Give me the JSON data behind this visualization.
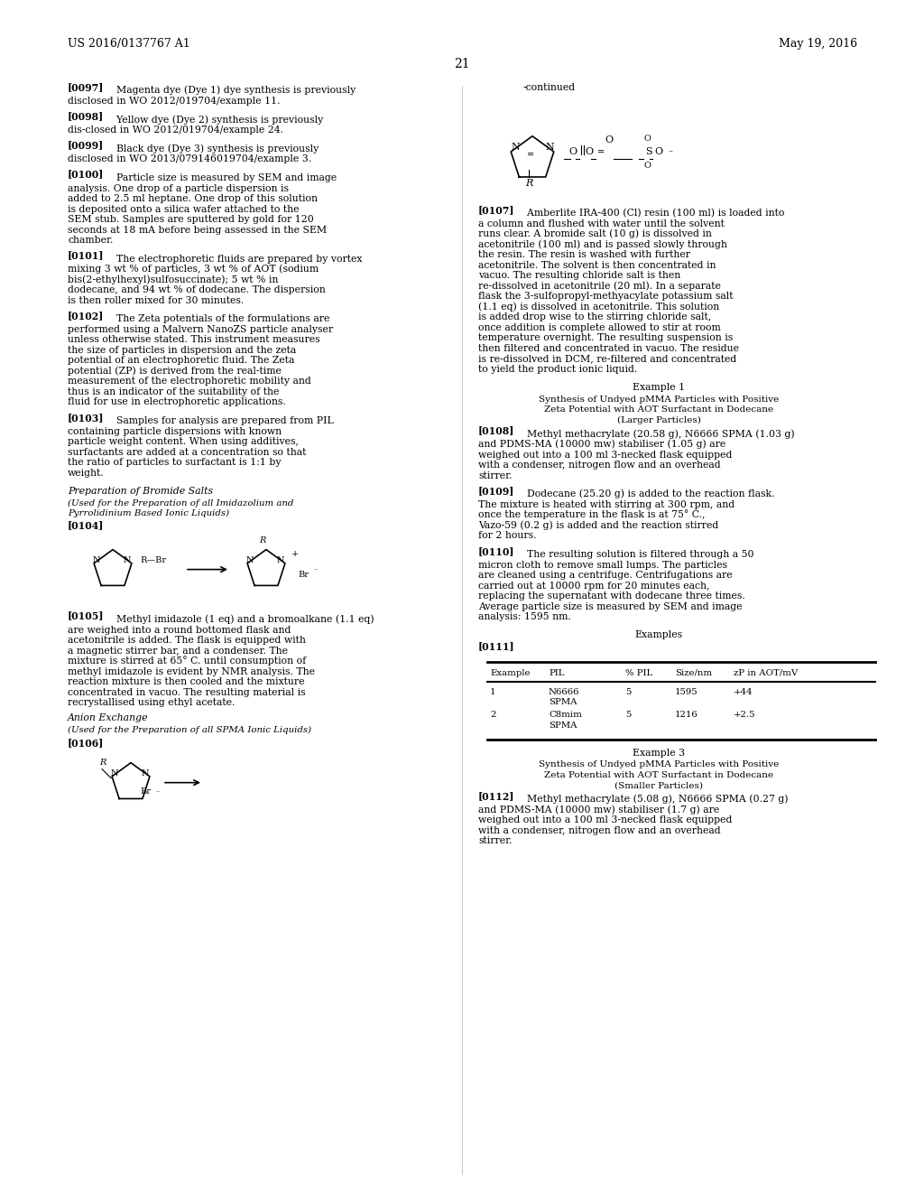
{
  "bg_color": "#ffffff",
  "header_left": "US 2016/0137767 A1",
  "header_right": "May 19, 2016",
  "page_number": "21",
  "left_column": {
    "paragraphs": [
      {
        "tag": "[0097]",
        "text": "Magenta dye (Dye 1) dye synthesis is previously disclosed in WO 2012/019704/example 11."
      },
      {
        "tag": "[0098]",
        "text": "Yellow dye (Dye 2) synthesis is previously disclosed in WO 2012/019704/example 24."
      },
      {
        "tag": "[0099]",
        "text": "Black dye (Dye 3) synthesis is previously disclosed in WO 2013/079146019704/example 3."
      },
      {
        "tag": "[0100]",
        "text": "Particle size is measured by SEM and image analysis. One drop of a particle dispersion is added to 2.5 ml heptane. One drop of this solution is deposited onto a silica wafer attached to the SEM stub. Samples are sputtered by gold for 120 seconds at 18 mA before being assessed in the SEM chamber."
      },
      {
        "tag": "[0101]",
        "text": "The electrophoretic fluids are prepared by vortex mixing 3 wt % of particles, 3 wt % of AOT (sodium bis(2-ethylhexyl)sulfosuccinate); 5 wt % in dodecane, and 94 wt % of dodecane. The dispersion is then roller mixed for 30 minutes."
      },
      {
        "tag": "[0102]",
        "text": "The Zeta potentials of the formulations are performed using a Malvern NanoZS particle analyser unless otherwise stated. This instrument measures the size of particles in dispersion and the zeta potential of an electrophoretic fluid. The Zeta potential (ZP) is derived from the real-time measurement of the electrophoretic mobility and thus is an indicator of the suitability of the fluid for use in electrophoretic applications."
      },
      {
        "tag": "[0103]",
        "text": "Samples for analysis are prepared from PIL containing particle dispersions with known particle weight content. When using additives, surfactants are added at a concentration so that the ratio of particles to surfactant is 1:1 by weight."
      },
      {
        "tag": "section1",
        "text": "Preparation of Bromide Salts"
      },
      {
        "tag": "section1sub",
        "text": "(Used for the Preparation of all Imidazolium and Pyrrolidinium Based Ionic Liquids)"
      },
      {
        "tag": "[0104]",
        "text": ""
      },
      {
        "tag": "[0105]",
        "text": "Methyl imidazole (1 eq) and a bromoalkane (1.1 eq) are weighed into a round bottomed flask and acetonitrile is added. The flask is equipped with a magnetic stirrer bar, and a condenser. The mixture is stirred at 65° C. until consumption of methyl imidazole is evident by NMR analysis. The reaction mixture is then cooled and the mixture concentrated in vacuo. The resulting material is recrystallised using ethyl acetate."
      },
      {
        "tag": "section2",
        "text": "Anion Exchange"
      },
      {
        "tag": "section2sub",
        "text": "(Used for the Preparation of all SPMA Ionic Liquids)"
      },
      {
        "tag": "[0106]",
        "text": ""
      }
    ]
  },
  "right_column": {
    "paragraphs": [
      {
        "tag": "continued_label",
        "text": "-continued"
      },
      {
        "tag": "chem_structure1",
        "text": ""
      },
      {
        "tag": "[0107]",
        "text": "Amberlite IRA-400 (Cl) resin (100 ml) is loaded into a column and flushed with water until the solvent runs clear. A bromide salt (10 g) is dissolved in acetonitrile (100 ml) and is passed slowly through the resin. The resin is washed with further acetonitrile. The solvent is then concentrated in vacuo. The resulting chloride salt is then re-dissolved in acetonitrile (20 ml). In a separate flask the 3-sulfopropyl-methyacylate potassium salt (1.1 eq) is dissolved in acetonitrile. This solution is added drop wise to the stirring chloride salt, once addition is complete allowed to stir at room temperature overnight. The resulting suspension is then filtered and concentrated in vacuo. The residue is re-dissolved in DCM, re-filtered and concentrated to yield the product ionic liquid."
      },
      {
        "tag": "example1_title",
        "text": "Example 1"
      },
      {
        "tag": "example1_sub",
        "text": "Synthesis of Undyed pMMA Particles with Positive\nZeta Potential with AOT Surfactant in Dodecane\n(Larger Particles)"
      },
      {
        "tag": "[0108]",
        "text": "Methyl methacrylate (20.58 g), N6666 SPMA (1.03 g) and PDMS-MA (10000 mw) stabiliser (1.05 g) are weighed out into a 100 ml 3-necked flask equipped with a condenser, nitrogen flow and an overhead stirrer."
      },
      {
        "tag": "[0109]",
        "text": "Dodecane (25.20 g) is added to the reaction flask. The mixture is heated with stirring at 300 rpm, and once the temperature in the flask is at 75° C., Vazo-59 (0.2 g) is added and the reaction stirred for 2 hours."
      },
      {
        "tag": "[0110]",
        "text": "The resulting solution is filtered through a 50 micron cloth to remove small lumps. The particles are cleaned using a centrifuge. Centrifugations are carried out at 10000 rpm for 20 minutes each, replacing the supernatant with dodecane three times. Average particle size is measured by SEM and image analysis: 1595 nm."
      },
      {
        "tag": "examples_title",
        "text": "Examples"
      },
      {
        "tag": "[0111]",
        "text": ""
      },
      {
        "tag": "table",
        "text": ""
      },
      {
        "tag": "example3_title",
        "text": "Example 3"
      },
      {
        "tag": "example3_sub",
        "text": "Synthesis of Undyed pMMA Particles with Positive\nZeta Potential with AOT Surfactant in Dodecane\n(Smaller Particles)"
      },
      {
        "tag": "[0112]",
        "text": "Methyl methacrylate (5.08 g), N6666 SPMA (0.27 g) and PDMS-MA (10000 mw) stabiliser (1.7 g) are weighed out into a 100 ml 3-necked flask equipped with a condenser, nitrogen flow and an overhead stirrer."
      }
    ]
  },
  "table": {
    "headers": [
      "Example",
      "PIL",
      "% PIL",
      "Size/nm",
      "zP in AOT/mV"
    ],
    "rows": [
      [
        "1",
        "N6666\nSPMA",
        "5",
        "1595",
        "+44"
      ],
      [
        "2",
        "C8mim\nSPMA",
        "5",
        "1216",
        "+2.5"
      ]
    ]
  }
}
